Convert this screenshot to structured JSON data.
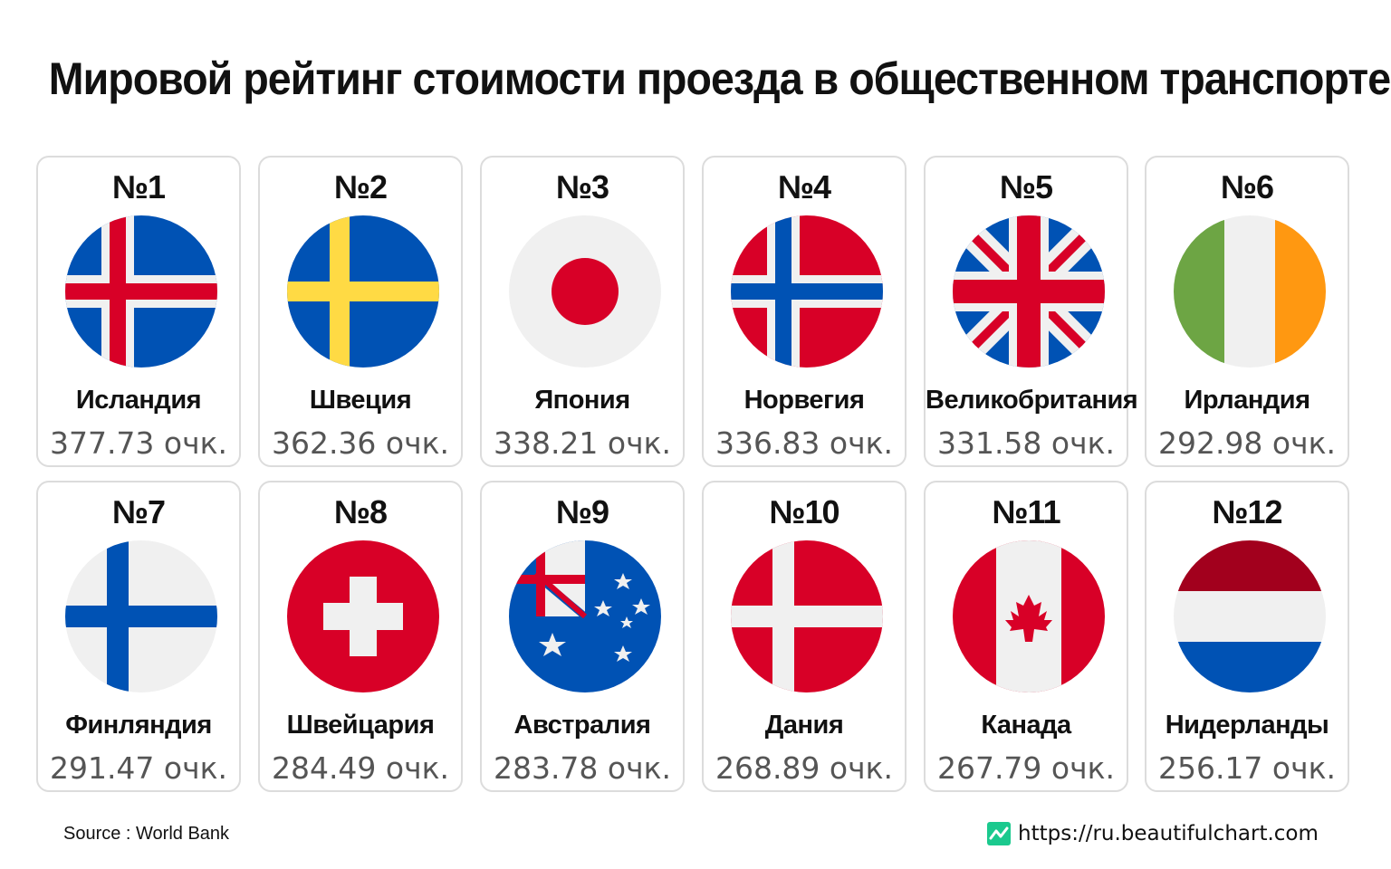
{
  "title": "Мировой рейтинг стоимости проезда в общественном транспорте",
  "source": "Source : World Bank",
  "site": {
    "url": "https://ru.beautifulchart.com",
    "icon": "chart-logo-icon",
    "icon_color": "#1bc98e"
  },
  "chart_data": {
    "type": "table",
    "title": "Мировой рейтинг стоимости проезда в общественном транспорте",
    "columns": [
      "rank",
      "flag",
      "country",
      "score"
    ],
    "unit": "очк.",
    "rows": [
      {
        "rank": "№1",
        "country": "Исландия",
        "value": 377.73,
        "score": "377.73 очк.",
        "flag": "iceland-flag-icon"
      },
      {
        "rank": "№2",
        "country": "Швеция",
        "value": 362.36,
        "score": "362.36 очк.",
        "flag": "sweden-flag-icon"
      },
      {
        "rank": "№3",
        "country": "Япония",
        "value": 338.21,
        "score": "338.21 очк.",
        "flag": "japan-flag-icon"
      },
      {
        "rank": "№4",
        "country": "Норвегия",
        "value": 336.83,
        "score": "336.83 очк.",
        "flag": "norway-flag-icon"
      },
      {
        "rank": "№5",
        "country": "Великобритания",
        "value": 331.58,
        "score": "331.58 очк.",
        "flag": "uk-flag-icon"
      },
      {
        "rank": "№6",
        "country": "Ирландия",
        "value": 292.98,
        "score": "292.98 очк.",
        "flag": "ireland-flag-icon"
      },
      {
        "rank": "№7",
        "country": "Финляндия",
        "value": 291.47,
        "score": "291.47 очк.",
        "flag": "finland-flag-icon"
      },
      {
        "rank": "№8",
        "country": "Швейцария",
        "value": 284.49,
        "score": "284.49 очк.",
        "flag": "switzerland-flag-icon"
      },
      {
        "rank": "№9",
        "country": "Австралия",
        "value": 283.78,
        "score": "283.78 очк.",
        "flag": "australia-flag-icon"
      },
      {
        "rank": "№10",
        "country": "Дания",
        "value": 268.89,
        "score": "268.89 очк.",
        "flag": "denmark-flag-icon"
      },
      {
        "rank": "№11",
        "country": "Канада",
        "value": 267.79,
        "score": "267.79 очк.",
        "flag": "canada-flag-icon"
      },
      {
        "rank": "№12",
        "country": "Нидерланды",
        "value": 256.17,
        "score": "256.17 очк.",
        "flag": "netherlands-flag-icon"
      }
    ]
  },
  "colors": {
    "red": "#d80027",
    "blue": "#0052b4",
    "yellow": "#ffda44",
    "light": "#f0f0f0",
    "green": "#6da544",
    "orange": "#ff9811",
    "maroon": "#a2001d",
    "card_border": "#dcdcdc",
    "score_text": "#555555"
  }
}
